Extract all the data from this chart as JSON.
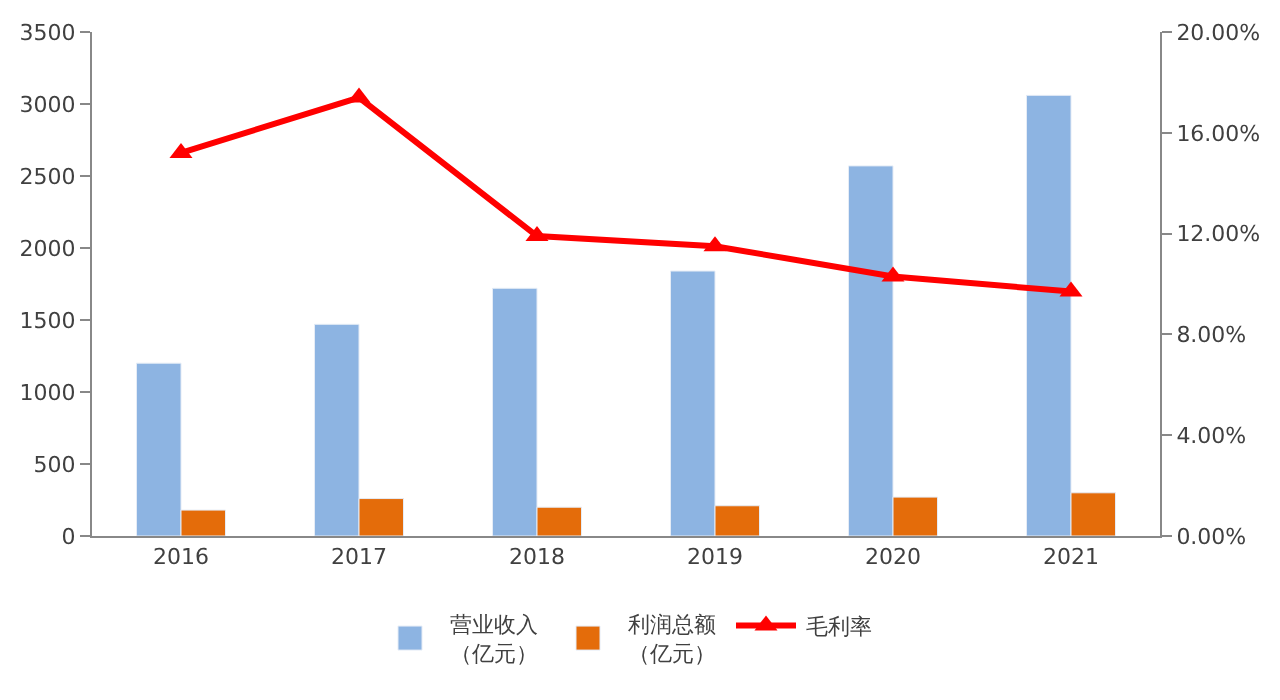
{
  "chart_data": {
    "type": "bar",
    "categories": [
      "2016",
      "2017",
      "2018",
      "2019",
      "2020",
      "2021"
    ],
    "series": [
      {
        "name": "营业收入（亿元）",
        "color": "#8db4e2",
        "values": [
          1200,
          1470,
          1720,
          1840,
          2570,
          3060
        ]
      },
      {
        "name": "利润总额（亿元）",
        "color": "#e46c0a",
        "values": [
          180,
          260,
          200,
          210,
          270,
          300
        ]
      },
      {
        "name": "毛利率",
        "type": "line",
        "axis": "y2",
        "color": "#ff0000",
        "marker": "triangle",
        "values": [
          15.2,
          17.4,
          11.9,
          11.5,
          10.3,
          9.7
        ]
      }
    ],
    "ylim": [
      0,
      3500
    ],
    "yticks": [
      0,
      500,
      1000,
      1500,
      2000,
      2500,
      3000,
      3500
    ],
    "y2lim": [
      0,
      20
    ],
    "y2ticks": [
      {
        "value": 0,
        "label": "0.00%"
      },
      {
        "value": 4,
        "label": "4.00%"
      },
      {
        "value": 8,
        "label": "8.00%"
      },
      {
        "value": 12,
        "label": "12.00%"
      },
      {
        "value": 16,
        "label": "16.00%"
      },
      {
        "value": 20,
        "label": "20.00%"
      }
    ],
    "legend": "bottom"
  }
}
